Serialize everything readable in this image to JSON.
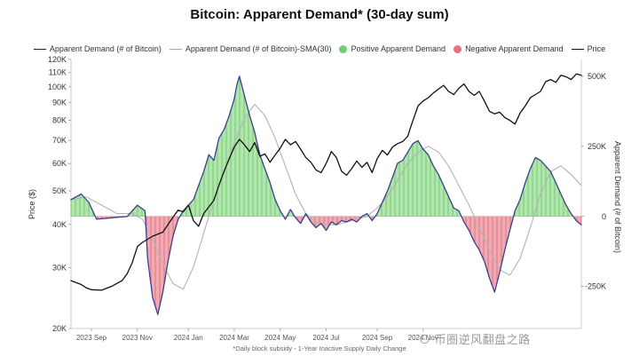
{
  "chart_data": {
    "type": "line",
    "title": "Bitcoin: Apparent Demand* (30-day sum)",
    "footnote": "*Daily block subsidy - 1-Year Inactive Supply Daily Change",
    "watermark": "⊙ 币圈逆风翻盘之路",
    "ylabel_left": "Price ($)",
    "ylabel_right": "Apparent Demand (# of Bitcoin)",
    "legend": [
      {
        "label": "Apparent Demand (# of Bitcoin)",
        "kind": "line",
        "color": "#3b3f8f"
      },
      {
        "label": "Apparent Demand (# of Bitcoin)-SMA(30)",
        "kind": "line",
        "color": "#aaaaaa"
      },
      {
        "label": "Positive Apparent Demand",
        "kind": "dot",
        "color": "#6fcf76"
      },
      {
        "label": "Negative Apparent Demand",
        "kind": "dot",
        "color": "#e8707e"
      },
      {
        "label": "Price",
        "kind": "line",
        "color": "#111111"
      }
    ],
    "x_ticks": [
      {
        "t": 0.04,
        "label": "2023 Sep"
      },
      {
        "t": 0.13,
        "label": "2023 Nov"
      },
      {
        "t": 0.23,
        "label": "2024 Jan"
      },
      {
        "t": 0.32,
        "label": "2024 Mar"
      },
      {
        "t": 0.41,
        "label": "2024 May"
      },
      {
        "t": 0.5,
        "label": "2024 Jul"
      },
      {
        "t": 0.6,
        "label": "2024 Sep"
      },
      {
        "t": 0.69,
        "label": "2024 Nov"
      }
    ],
    "price_axis": {
      "scale": "log",
      "min": 20000,
      "max": 120000,
      "ticks": [
        {
          "v": 120000,
          "label": "120K"
        },
        {
          "v": 110000,
          "label": "110K"
        },
        {
          "v": 100000,
          "label": "100K"
        },
        {
          "v": 90000,
          "label": "90K"
        },
        {
          "v": 80000,
          "label": "80K"
        },
        {
          "v": 70000,
          "label": "70K"
        },
        {
          "v": 60000,
          "label": "60K"
        },
        {
          "v": 50000,
          "label": "50K"
        },
        {
          "v": 40000,
          "label": "40K"
        },
        {
          "v": 30000,
          "label": "30K"
        },
        {
          "v": 20000,
          "label": "20K"
        }
      ]
    },
    "demand_axis": {
      "min": -400000,
      "max": 560000,
      "ticks": [
        {
          "v": 500000,
          "label": "500K"
        },
        {
          "v": 250000,
          "label": "250K"
        },
        {
          "v": 0,
          "label": "0"
        },
        {
          "v": -250000,
          "label": "-250K"
        }
      ]
    },
    "price_series": [
      [
        0.0,
        27500
      ],
      [
        0.02,
        26800
      ],
      [
        0.03,
        26200
      ],
      [
        0.04,
        25900
      ],
      [
        0.06,
        25800
      ],
      [
        0.08,
        26500
      ],
      [
        0.1,
        27500
      ],
      [
        0.11,
        28800
      ],
      [
        0.12,
        31000
      ],
      [
        0.13,
        34500
      ],
      [
        0.14,
        35500
      ],
      [
        0.16,
        37000
      ],
      [
        0.18,
        38000
      ],
      [
        0.2,
        42000
      ],
      [
        0.21,
        44000
      ],
      [
        0.22,
        43500
      ],
      [
        0.23,
        45500
      ],
      [
        0.24,
        41000
      ],
      [
        0.25,
        39500
      ],
      [
        0.26,
        43000
      ],
      [
        0.28,
        47000
      ],
      [
        0.29,
        52000
      ],
      [
        0.3,
        57000
      ],
      [
        0.31,
        62000
      ],
      [
        0.32,
        67000
      ],
      [
        0.33,
        70500
      ],
      [
        0.34,
        68000
      ],
      [
        0.35,
        65000
      ],
      [
        0.36,
        69000
      ],
      [
        0.37,
        63000
      ],
      [
        0.38,
        64000
      ],
      [
        0.39,
        60500
      ],
      [
        0.4,
        63500
      ],
      [
        0.41,
        66500
      ],
      [
        0.42,
        70500
      ],
      [
        0.43,
        68000
      ],
      [
        0.44,
        69500
      ],
      [
        0.45,
        66000
      ],
      [
        0.46,
        62500
      ],
      [
        0.47,
        60500
      ],
      [
        0.48,
        57500
      ],
      [
        0.49,
        56500
      ],
      [
        0.5,
        60000
      ],
      [
        0.51,
        65000
      ],
      [
        0.52,
        62500
      ],
      [
        0.53,
        57000
      ],
      [
        0.54,
        55500
      ],
      [
        0.55,
        58000
      ],
      [
        0.56,
        61000
      ],
      [
        0.57,
        58500
      ],
      [
        0.58,
        60500
      ],
      [
        0.59,
        56500
      ],
      [
        0.6,
        62000
      ],
      [
        0.61,
        65500
      ],
      [
        0.62,
        63500
      ],
      [
        0.63,
        67000
      ],
      [
        0.64,
        68500
      ],
      [
        0.65,
        69500
      ],
      [
        0.66,
        72000
      ],
      [
        0.665,
        76000
      ],
      [
        0.67,
        80000
      ],
      [
        0.68,
        88000
      ],
      [
        0.69,
        91000
      ],
      [
        0.7,
        93000
      ],
      [
        0.71,
        96000
      ],
      [
        0.72,
        98500
      ],
      [
        0.73,
        101000
      ],
      [
        0.74,
        97000
      ],
      [
        0.75,
        95000
      ],
      [
        0.76,
        99000
      ],
      [
        0.77,
        102000
      ],
      [
        0.78,
        97000
      ],
      [
        0.79,
        94500
      ],
      [
        0.8,
        97000
      ],
      [
        0.81,
        91000
      ],
      [
        0.82,
        85000
      ],
      [
        0.83,
        83500
      ],
      [
        0.84,
        84500
      ],
      [
        0.85,
        81500
      ],
      [
        0.86,
        80000
      ],
      [
        0.87,
        78000
      ],
      [
        0.88,
        84000
      ],
      [
        0.89,
        88000
      ],
      [
        0.9,
        93000
      ],
      [
        0.91,
        95000
      ],
      [
        0.92,
        97000
      ],
      [
        0.93,
        103500
      ],
      [
        0.94,
        105000
      ],
      [
        0.95,
        103000
      ],
      [
        0.96,
        108000
      ],
      [
        0.97,
        107000
      ],
      [
        0.98,
        105000
      ],
      [
        0.99,
        109000
      ],
      [
        1.0,
        108000
      ]
    ],
    "demand_series": [
      [
        0.0,
        60000
      ],
      [
        0.02,
        80000
      ],
      [
        0.035,
        50000
      ],
      [
        0.05,
        -10000
      ],
      [
        0.08,
        -5000
      ],
      [
        0.11,
        0
      ],
      [
        0.13,
        40000
      ],
      [
        0.145,
        20000
      ],
      [
        0.15,
        -150000
      ],
      [
        0.16,
        -290000
      ],
      [
        0.17,
        -350000
      ],
      [
        0.18,
        -270000
      ],
      [
        0.19,
        -160000
      ],
      [
        0.2,
        -70000
      ],
      [
        0.21,
        -10000
      ],
      [
        0.22,
        20000
      ],
      [
        0.24,
        60000
      ],
      [
        0.26,
        160000
      ],
      [
        0.27,
        220000
      ],
      [
        0.28,
        200000
      ],
      [
        0.29,
        280000
      ],
      [
        0.3,
        310000
      ],
      [
        0.31,
        360000
      ],
      [
        0.32,
        420000
      ],
      [
        0.325,
        470000
      ],
      [
        0.33,
        500000
      ],
      [
        0.34,
        430000
      ],
      [
        0.35,
        360000
      ],
      [
        0.36,
        300000
      ],
      [
        0.37,
        220000
      ],
      [
        0.38,
        170000
      ],
      [
        0.39,
        120000
      ],
      [
        0.4,
        60000
      ],
      [
        0.41,
        20000
      ],
      [
        0.42,
        -10000
      ],
      [
        0.43,
        25000
      ],
      [
        0.44,
        -5000
      ],
      [
        0.45,
        -25000
      ],
      [
        0.46,
        10000
      ],
      [
        0.47,
        -20000
      ],
      [
        0.48,
        -40000
      ],
      [
        0.49,
        -25000
      ],
      [
        0.5,
        -50000
      ],
      [
        0.51,
        -20000
      ],
      [
        0.52,
        -30000
      ],
      [
        0.53,
        -15000
      ],
      [
        0.54,
        -20000
      ],
      [
        0.55,
        -10000
      ],
      [
        0.56,
        -20000
      ],
      [
        0.57,
        0
      ],
      [
        0.58,
        10000
      ],
      [
        0.59,
        -15000
      ],
      [
        0.6,
        10000
      ],
      [
        0.61,
        50000
      ],
      [
        0.62,
        90000
      ],
      [
        0.63,
        140000
      ],
      [
        0.64,
        190000
      ],
      [
        0.65,
        200000
      ],
      [
        0.66,
        230000
      ],
      [
        0.67,
        260000
      ],
      [
        0.68,
        270000
      ],
      [
        0.69,
        240000
      ],
      [
        0.7,
        220000
      ],
      [
        0.71,
        180000
      ],
      [
        0.72,
        150000
      ],
      [
        0.73,
        110000
      ],
      [
        0.74,
        70000
      ],
      [
        0.75,
        30000
      ],
      [
        0.76,
        20000
      ],
      [
        0.77,
        -20000
      ],
      [
        0.78,
        -50000
      ],
      [
        0.79,
        -90000
      ],
      [
        0.8,
        -120000
      ],
      [
        0.81,
        -160000
      ],
      [
        0.82,
        -220000
      ],
      [
        0.83,
        -270000
      ],
      [
        0.84,
        -200000
      ],
      [
        0.85,
        -120000
      ],
      [
        0.86,
        -50000
      ],
      [
        0.87,
        20000
      ],
      [
        0.88,
        60000
      ],
      [
        0.89,
        120000
      ],
      [
        0.9,
        170000
      ],
      [
        0.91,
        210000
      ],
      [
        0.92,
        200000
      ],
      [
        0.93,
        180000
      ],
      [
        0.94,
        160000
      ],
      [
        0.95,
        120000
      ],
      [
        0.96,
        80000
      ],
      [
        0.97,
        40000
      ],
      [
        0.98,
        10000
      ],
      [
        0.99,
        -15000
      ],
      [
        1.0,
        -30000
      ]
    ],
    "sma_series": [
      [
        0.0,
        60000
      ],
      [
        0.03,
        70000
      ],
      [
        0.06,
        40000
      ],
      [
        0.09,
        10000
      ],
      [
        0.12,
        10000
      ],
      [
        0.14,
        -10000
      ],
      [
        0.16,
        -80000
      ],
      [
        0.18,
        -170000
      ],
      [
        0.2,
        -240000
      ],
      [
        0.22,
        -260000
      ],
      [
        0.24,
        -180000
      ],
      [
        0.26,
        -60000
      ],
      [
        0.28,
        60000
      ],
      [
        0.3,
        160000
      ],
      [
        0.32,
        260000
      ],
      [
        0.34,
        350000
      ],
      [
        0.36,
        400000
      ],
      [
        0.38,
        360000
      ],
      [
        0.4,
        280000
      ],
      [
        0.42,
        180000
      ],
      [
        0.44,
        80000
      ],
      [
        0.46,
        10000
      ],
      [
        0.48,
        -20000
      ],
      [
        0.5,
        -30000
      ],
      [
        0.52,
        -30000
      ],
      [
        0.54,
        -20000
      ],
      [
        0.56,
        -10000
      ],
      [
        0.58,
        0
      ],
      [
        0.6,
        30000
      ],
      [
        0.62,
        70000
      ],
      [
        0.64,
        130000
      ],
      [
        0.66,
        190000
      ],
      [
        0.68,
        230000
      ],
      [
        0.7,
        250000
      ],
      [
        0.72,
        230000
      ],
      [
        0.74,
        180000
      ],
      [
        0.76,
        110000
      ],
      [
        0.78,
        40000
      ],
      [
        0.8,
        -40000
      ],
      [
        0.82,
        -120000
      ],
      [
        0.84,
        -190000
      ],
      [
        0.86,
        -210000
      ],
      [
        0.88,
        -150000
      ],
      [
        0.9,
        -40000
      ],
      [
        0.92,
        80000
      ],
      [
        0.94,
        160000
      ],
      [
        0.96,
        180000
      ],
      [
        0.98,
        150000
      ],
      [
        1.0,
        110000
      ]
    ]
  }
}
